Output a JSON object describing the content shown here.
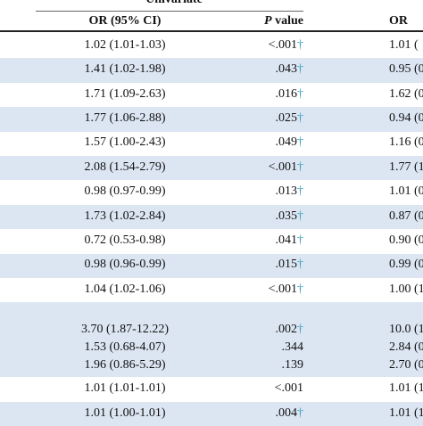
{
  "header": {
    "group": "Univariate",
    "col_or": "OR (95% CI)",
    "col_p_italic": "P",
    "col_p_rest": "value",
    "col_or2": "OR"
  },
  "table": {
    "rows": [
      {
        "or": "1.02 (1.01-1.03)",
        "p": "<.001",
        "dagger": "†",
        "or2": "1.01 ("
      },
      {
        "or": "1.41 (1.02-1.98)",
        "p": ".043",
        "dagger": "†",
        "or2": "0.95 (0"
      },
      {
        "or": "1.71 (1.09-2.63)",
        "p": ".016",
        "dagger": "†",
        "or2": "1.62 (0"
      },
      {
        "or": "1.77 (1.06-2.88)",
        "p": ".025",
        "dagger": "†",
        "or2": "0.94 (0"
      },
      {
        "or": "1.57 (1.00-2.43)",
        "p": ".049",
        "dagger": "†",
        "or2": "1.16 (0"
      },
      {
        "or": "2.08 (1.54-2.79)",
        "p": "<.001",
        "dagger": "†",
        "or2": "1.77 (1"
      },
      {
        "or": "0.98 (0.97-0.99)",
        "p": ".013",
        "dagger": "†",
        "or2": "1.01 (0"
      },
      {
        "or": "1.73 (1.02-2.84)",
        "p": ".035",
        "dagger": "†",
        "or2": "0.87 (0"
      },
      {
        "or": "0.72 (0.53-0.98)",
        "p": ".041",
        "dagger": "†",
        "or2": "0.90 (0"
      },
      {
        "or": "0.98 (0.96-0.99)",
        "p": ".015",
        "dagger": "†",
        "or2": "0.99 (0"
      },
      {
        "or": "1.04 (1.02-1.06)",
        "p": "<.001",
        "dagger": "†",
        "or2": "1.00 (1"
      },
      {
        "subrows": [
          {
            "or": "3.70 (1.87-12.22)",
            "p": ".002",
            "dagger": "†",
            "or2": "10.0 (1"
          },
          {
            "or": "1.53 (0.68-4.07)",
            "p": ".344",
            "or2": "2.84 (0"
          },
          {
            "or": "1.96 (0.86-5.29)",
            "p": ".139",
            "or2": "2.70 (0"
          }
        ]
      },
      {
        "or": "1.01 (1.01-1.01)",
        "p": "<.001",
        "or2": "1.01 (1"
      },
      {
        "or": "1.01 (1.00-1.01)",
        "p": ".004",
        "dagger": "†",
        "or2": "1.01 (1"
      }
    ]
  }
}
